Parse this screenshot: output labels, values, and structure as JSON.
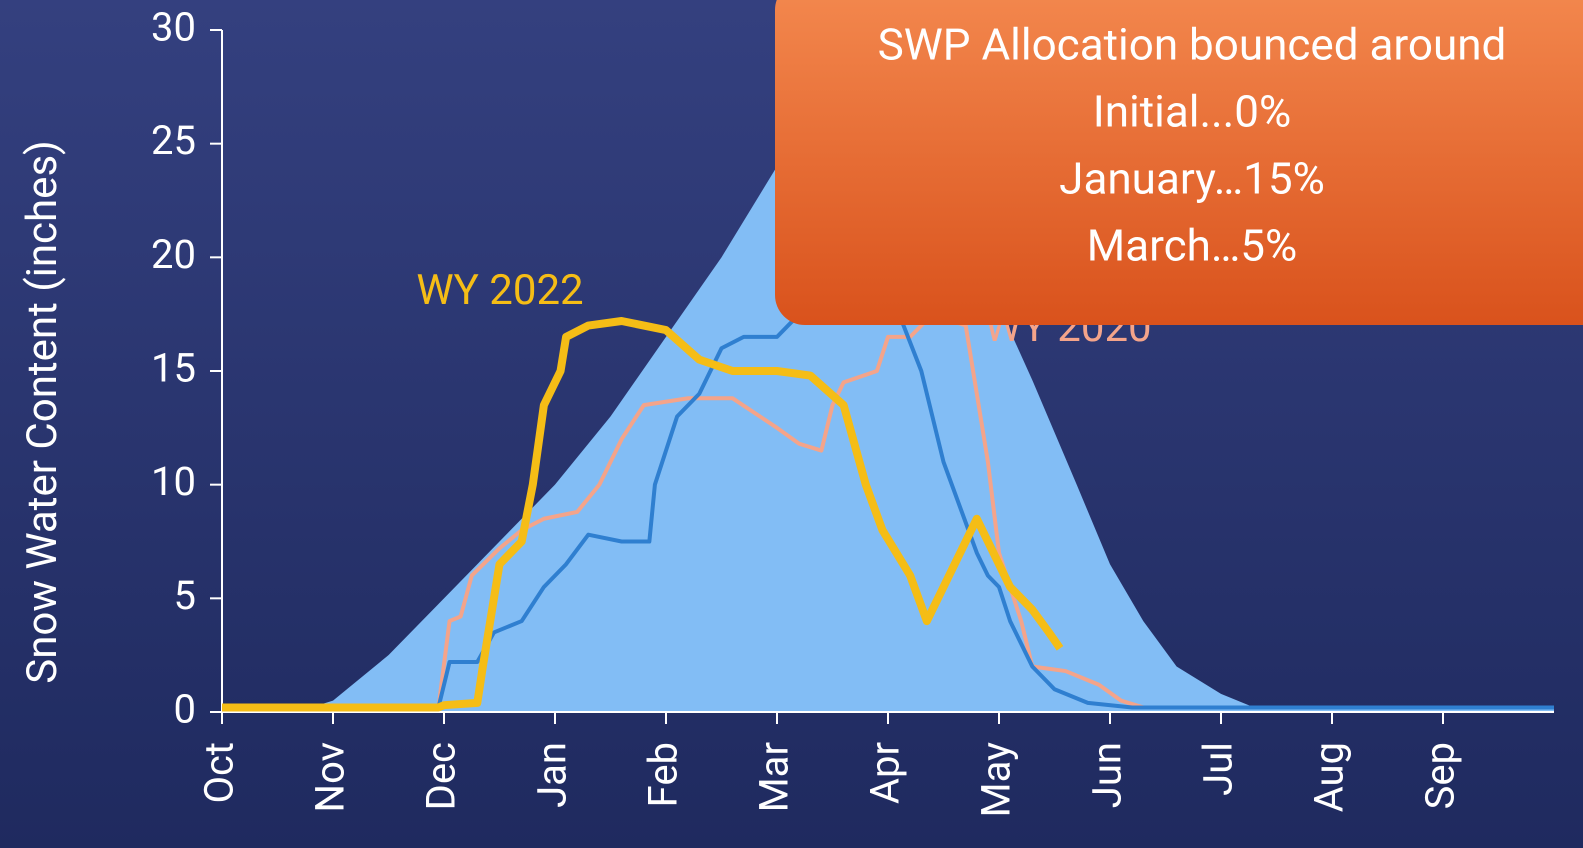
{
  "chart_data": {
    "type": "line",
    "ylabel": "Snow Water Content (inches)",
    "xlim": [
      0,
      12
    ],
    "xticks": [
      {
        "value": 0,
        "label": "Oct"
      },
      {
        "value": 1,
        "label": "Nov"
      },
      {
        "value": 2,
        "label": "Dec"
      },
      {
        "value": 3,
        "label": "Jan"
      },
      {
        "value": 4,
        "label": "Feb"
      },
      {
        "value": 5,
        "label": "Mar"
      },
      {
        "value": 6,
        "label": "Apr"
      },
      {
        "value": 7,
        "label": "May"
      },
      {
        "value": 8,
        "label": "Jun"
      },
      {
        "value": 9,
        "label": "Jul"
      },
      {
        "value": 10,
        "label": "Aug"
      },
      {
        "value": 11,
        "label": "Sep"
      }
    ],
    "ylim": [
      0,
      30
    ],
    "yticks": [
      0,
      5,
      10,
      15,
      20,
      25,
      30
    ],
    "area": {
      "color": "#82bdf5",
      "x": [
        0,
        0.8,
        1.0,
        1.5,
        2,
        2.5,
        3,
        3.5,
        4,
        4.5,
        5,
        5.3,
        5.7,
        6.2,
        6.5,
        6.8,
        7.3,
        7.7,
        8,
        8.3,
        8.6,
        9,
        9.3,
        12
      ],
      "values": [
        0.2,
        0.2,
        0.5,
        2.5,
        5,
        7.5,
        10,
        13,
        16.5,
        20,
        24,
        26.5,
        28,
        28,
        24,
        20,
        14.6,
        10,
        6.5,
        4,
        2,
        0.8,
        0.2,
        0.2
      ]
    },
    "series": [
      {
        "color": "#f4a48a",
        "name": "WY 2020",
        "width": 4,
        "x": [
          0,
          1.95,
          2.05,
          2.15,
          2.25,
          2.5,
          2.7,
          2.9,
          3.2,
          3.4,
          3.6,
          3.8,
          4.2,
          4.6,
          5.0,
          5.2,
          5.4,
          5.5,
          5.6,
          5.9,
          6.0,
          6.2,
          6.4,
          6.7,
          6.9,
          7.0,
          7.2,
          7.3,
          7.6,
          7.9,
          8.1,
          8.3,
          12
        ],
        "values": [
          0.2,
          0.2,
          4,
          4.2,
          6,
          7.2,
          8,
          8.5,
          8.8,
          10,
          12,
          13.5,
          13.8,
          13.8,
          12.5,
          11.8,
          11.5,
          13.5,
          14.5,
          15,
          16.5,
          16.5,
          17.5,
          17,
          11,
          7,
          4,
          2,
          1.8,
          1.2,
          0.5,
          0.2,
          0.2
        ]
      },
      {
        "color": "#2f7fd0",
        "width": 4,
        "x": [
          0,
          1.95,
          2.05,
          2.3,
          2.45,
          2.7,
          2.9,
          3.1,
          3.3,
          3.6,
          3.85,
          3.9,
          4.1,
          4.3,
          4.5,
          4.7,
          5.0,
          5.2,
          6.1,
          6.3,
          6.5,
          6.8,
          6.9,
          7.0,
          7.1,
          7.3,
          7.5,
          7.8,
          8.2,
          12
        ],
        "values": [
          0.2,
          0.2,
          2.2,
          2.2,
          3.5,
          4,
          5.5,
          6.5,
          7.8,
          7.5,
          7.5,
          10,
          13,
          14,
          16,
          16.5,
          16.5,
          17.5,
          17.5,
          15,
          11,
          7,
          6,
          5.5,
          4,
          2,
          1,
          0.4,
          0.2,
          0.2
        ]
      },
      {
        "color": "#f5bd16",
        "name": "WY 2022",
        "width": 8,
        "x": [
          0,
          1.95,
          2.0,
          2.3,
          2.35,
          2.5,
          2.7,
          2.8,
          2.9,
          3.05,
          3.1,
          3.3,
          3.6,
          4.0,
          4.3,
          4.6,
          5.0,
          5.3,
          5.6,
          5.8,
          5.95,
          6.2,
          6.35,
          6.5,
          6.65,
          6.8,
          6.95,
          7.1,
          7.3,
          7.45,
          7.55
        ],
        "values": [
          0.2,
          0.2,
          0.3,
          0.4,
          2,
          6.5,
          7.5,
          10,
          13.5,
          15,
          16.5,
          17,
          17.2,
          16.8,
          15.5,
          15,
          15,
          14.8,
          13.5,
          10,
          8,
          6,
          4,
          5.5,
          7,
          8.5,
          7,
          5.5,
          4.5,
          3.5,
          2.8
        ]
      }
    ],
    "annotations": [
      "SWP Allocation bounced around",
      "Initial...0%",
      "January…15%",
      "March…5%"
    ]
  }
}
